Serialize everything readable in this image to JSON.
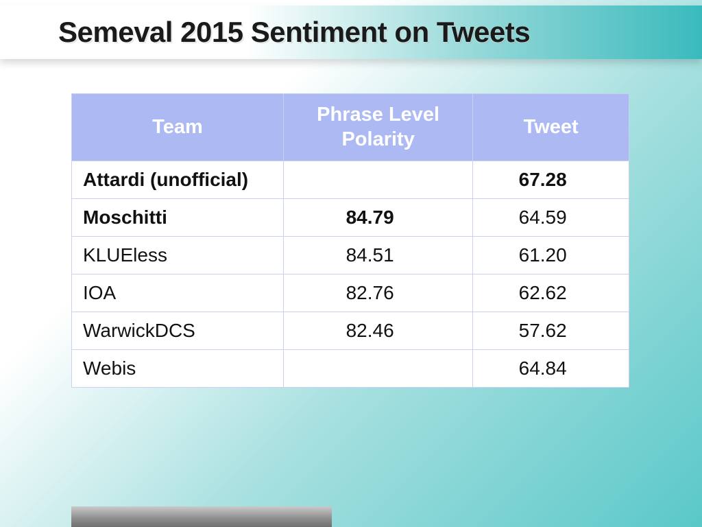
{
  "title": "Semeval 2015 Sentiment on Tweets",
  "table": {
    "columns": [
      "Team",
      "Phrase Level Polarity",
      "Tweet"
    ],
    "rows": [
      {
        "team": "Attardi (unofficial)",
        "phrase": "",
        "tweet": "67.28",
        "team_bold": true,
        "phrase_bold": false,
        "tweet_bold": true
      },
      {
        "team": "Moschitti",
        "phrase": "84.79",
        "tweet": "64.59",
        "team_bold": true,
        "phrase_bold": true,
        "tweet_bold": false
      },
      {
        "team": "KLUEless",
        "phrase": "84.51",
        "tweet": "61.20",
        "team_bold": false,
        "phrase_bold": false,
        "tweet_bold": false
      },
      {
        "team": "IOA",
        "phrase": "82.76",
        "tweet": "62.62",
        "team_bold": false,
        "phrase_bold": false,
        "tweet_bold": false
      },
      {
        "team": "WarwickDCS",
        "phrase": "82.46",
        "tweet": "57.62",
        "team_bold": false,
        "phrase_bold": false,
        "tweet_bold": false
      },
      {
        "team": "Webis",
        "phrase": "",
        "tweet": "64.84",
        "team_bold": false,
        "phrase_bold": false,
        "tweet_bold": false
      }
    ],
    "header_bg": "#adb9f3",
    "header_fg": "#ffffff",
    "border_color": "#c9d0f0",
    "row_bg": "#ffffff",
    "font_size_body": 28,
    "font_size_header": 29
  },
  "colors": {
    "accent_teal": "#5ac8c8",
    "title_color": "#1a1a1a"
  }
}
